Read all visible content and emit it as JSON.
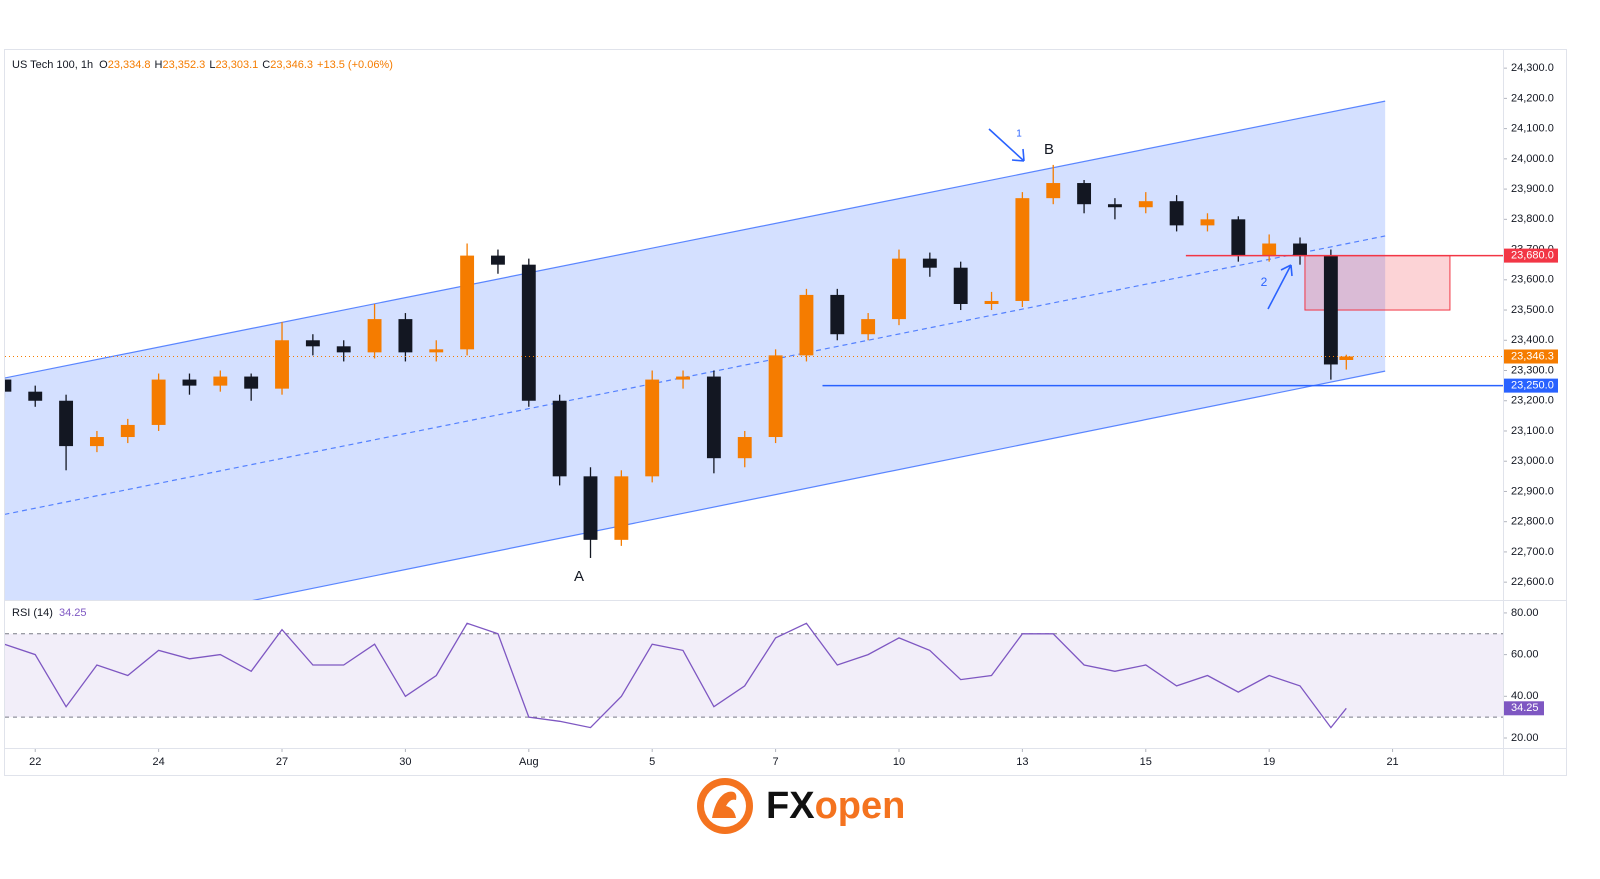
{
  "chart_data": [
    {
      "type": "candlestick",
      "title": "US Tech 100, 1h",
      "header_values": [
        {
          "prefix": "O",
          "value": 23334.8,
          "label": "23,334.8"
        },
        {
          "prefix": "H",
          "value": 23352.3,
          "label": "23,352.3"
        },
        {
          "prefix": "L",
          "value": 23303.1,
          "label": "23,303.1"
        },
        {
          "prefix": "C",
          "value": 23346.3,
          "label": "23,346.3"
        }
      ],
      "change": "+13.5 (+0.06%)",
      "x": [
        -0.5,
        0,
        0.5,
        1,
        1.5,
        2,
        2.5,
        3,
        3.5,
        4,
        4.5,
        5,
        5.5,
        6,
        6.5,
        7,
        7.5,
        8,
        8.5,
        9,
        9.5,
        10,
        10.5,
        11,
        11.5,
        12,
        12.5,
        13,
        13.5,
        14,
        14.5,
        15,
        15.5,
        16,
        16.5,
        17,
        17.5,
        18,
        18.5,
        19,
        19.5,
        20,
        20.5,
        21,
        21.25
      ],
      "open": [
        23270,
        23230,
        23200,
        23050,
        23080,
        23120,
        23270,
        23250,
        23280,
        23240,
        23400,
        23380,
        23360,
        23470,
        23360,
        23370,
        23680,
        23650,
        23200,
        22950,
        22740,
        22950,
        23270,
        23280,
        23010,
        23080,
        23350,
        23550,
        23420,
        23470,
        23670,
        23640,
        23520,
        23530,
        23870,
        23920,
        23850,
        23840,
        23860,
        23780,
        23800,
        23680,
        23720,
        23680,
        23334.8
      ],
      "high": [
        23290,
        23250,
        23220,
        23100,
        23140,
        23290,
        23290,
        23300,
        23290,
        23460,
        23420,
        23400,
        23520,
        23490,
        23400,
        23720,
        23700,
        23670,
        23220,
        22980,
        22970,
        23300,
        23300,
        23300,
        23100,
        23370,
        23570,
        23570,
        23490,
        23700,
        23690,
        23660,
        23560,
        23890,
        23980,
        23930,
        23870,
        23890,
        23880,
        23820,
        23810,
        23750,
        23740,
        23700,
        23352.3
      ],
      "low": [
        23210,
        23180,
        22970,
        23030,
        23060,
        23100,
        23220,
        23230,
        23200,
        23220,
        23350,
        23330,
        23340,
        23330,
        23330,
        23350,
        23620,
        23180,
        22920,
        22680,
        22720,
        22930,
        23240,
        22960,
        22980,
        23060,
        23330,
        23400,
        23400,
        23450,
        23610,
        23500,
        23500,
        23510,
        23850,
        23820,
        23800,
        23820,
        23760,
        23760,
        23660,
        23660,
        23650,
        23270,
        23303.1
      ],
      "close": [
        23230,
        23200,
        23050,
        23080,
        23120,
        23270,
        23250,
        23280,
        23240,
        23400,
        23380,
        23360,
        23470,
        23360,
        23370,
        23680,
        23650,
        23200,
        22950,
        22740,
        22950,
        23270,
        23280,
        23010,
        23080,
        23350,
        23550,
        23420,
        23470,
        23670,
        23640,
        23520,
        23530,
        23870,
        23920,
        23850,
        23840,
        23860,
        23780,
        23800,
        23680,
        23720,
        23680,
        23320,
        23346.3
      ],
      "up_color": "#f57c00",
      "down_color": "#131722",
      "xlim": [
        -0.49,
        23.79
      ],
      "xticks": [
        {
          "value": 0,
          "label": "22"
        },
        {
          "value": 2,
          "label": "24"
        },
        {
          "value": 4,
          "label": "27"
        },
        {
          "value": 6,
          "label": "30"
        },
        {
          "value": 8,
          "label": "Aug"
        },
        {
          "value": 10,
          "label": "5"
        },
        {
          "value": 12,
          "label": "7"
        },
        {
          "value": 14,
          "label": "10"
        },
        {
          "value": 16,
          "label": "13"
        },
        {
          "value": 18,
          "label": "15"
        },
        {
          "value": 20,
          "label": "19"
        },
        {
          "value": 22,
          "label": "21"
        }
      ],
      "ylim": [
        22541,
        24360
      ],
      "yticks": [
        {
          "value": 22600,
          "label": "22,600.0"
        },
        {
          "value": 22700,
          "label": "22,700.0"
        },
        {
          "value": 22800,
          "label": "22,800.0"
        },
        {
          "value": 22900,
          "label": "22,900.0"
        },
        {
          "value": 23000,
          "label": "23,000.0"
        },
        {
          "value": 23100,
          "label": "23,100.0"
        },
        {
          "value": 23200,
          "label": "23,200.0"
        },
        {
          "value": 23300,
          "label": "23,300.0"
        },
        {
          "value": 23400,
          "label": "23,400.0"
        },
        {
          "value": 23500,
          "label": "23,500.0"
        },
        {
          "value": 23600,
          "label": "23,600.0"
        },
        {
          "value": 23700,
          "label": "23,700.0"
        },
        {
          "value": 23800,
          "label": "23,800.0"
        },
        {
          "value": 23900,
          "label": "23,900.0"
        },
        {
          "value": 24000,
          "label": "24,000.0"
        },
        {
          "value": 24100,
          "label": "24,100.0"
        },
        {
          "value": 24200,
          "label": "24,200.0"
        },
        {
          "value": 24300,
          "label": "24,300.0"
        }
      ],
      "channel": {
        "x": [
          -0.5,
          21.88
        ],
        "upper": [
          23275,
          24191
        ],
        "middle": [
          22824,
          23745
        ],
        "lower": [
          22373,
          23298
        ],
        "color": "#2962ff"
      },
      "zone": {
        "x": [
          20.58,
          22.93
        ],
        "y": [
          23500,
          23680
        ],
        "color": "#f23645"
      },
      "levels": [
        {
          "value": 23680,
          "label": "23,680.0",
          "color": "#f23645",
          "from": 18.65,
          "style": "solid"
        },
        {
          "value": 23346.3,
          "label": "23,346.3",
          "color": "#f57c00",
          "from": -0.49,
          "style": "dotted"
        },
        {
          "value": 23250,
          "label": "23,250.0",
          "color": "#2962ff",
          "from": 12.76,
          "style": "solid"
        }
      ],
      "annotations": [
        "A",
        "B",
        "1",
        "2"
      ]
    },
    {
      "type": "line",
      "title": "RSI (14)",
      "x": [
        -0.5,
        0,
        0.5,
        1,
        1.5,
        2,
        2.5,
        3,
        3.5,
        4,
        4.5,
        5,
        5.5,
        6,
        6.5,
        7,
        7.5,
        8,
        8.5,
        9,
        9.5,
        10,
        10.5,
        11,
        11.5,
        12,
        12.5,
        13,
        13.5,
        14,
        14.5,
        15,
        15.5,
        16,
        16.5,
        17,
        17.5,
        18,
        18.5,
        19,
        19.5,
        20,
        20.5,
        21,
        21.25
      ],
      "values": [
        65,
        60,
        35,
        55,
        50,
        62,
        58,
        60,
        52,
        72,
        55,
        55,
        65,
        40,
        50,
        75,
        70,
        30,
        28,
        25,
        40,
        65,
        62,
        35,
        45,
        68,
        75,
        55,
        60,
        68,
        62,
        48,
        50,
        70,
        70,
        55,
        52,
        55,
        45,
        50,
        42,
        50,
        45,
        25,
        34.25
      ],
      "color": "#7e57c2",
      "xlim": [
        -0.49,
        23.79
      ],
      "ylim": [
        15.2,
        86.2
      ],
      "yticks": [
        {
          "value": 20,
          "label": "20.00"
        },
        {
          "value": 40,
          "label": "40.00"
        },
        {
          "value": 60,
          "label": "60.00"
        },
        {
          "value": 80,
          "label": "80.00"
        }
      ],
      "bands": [
        30,
        70
      ]
    }
  ],
  "logo": {
    "left": "FX",
    "right": "open"
  }
}
